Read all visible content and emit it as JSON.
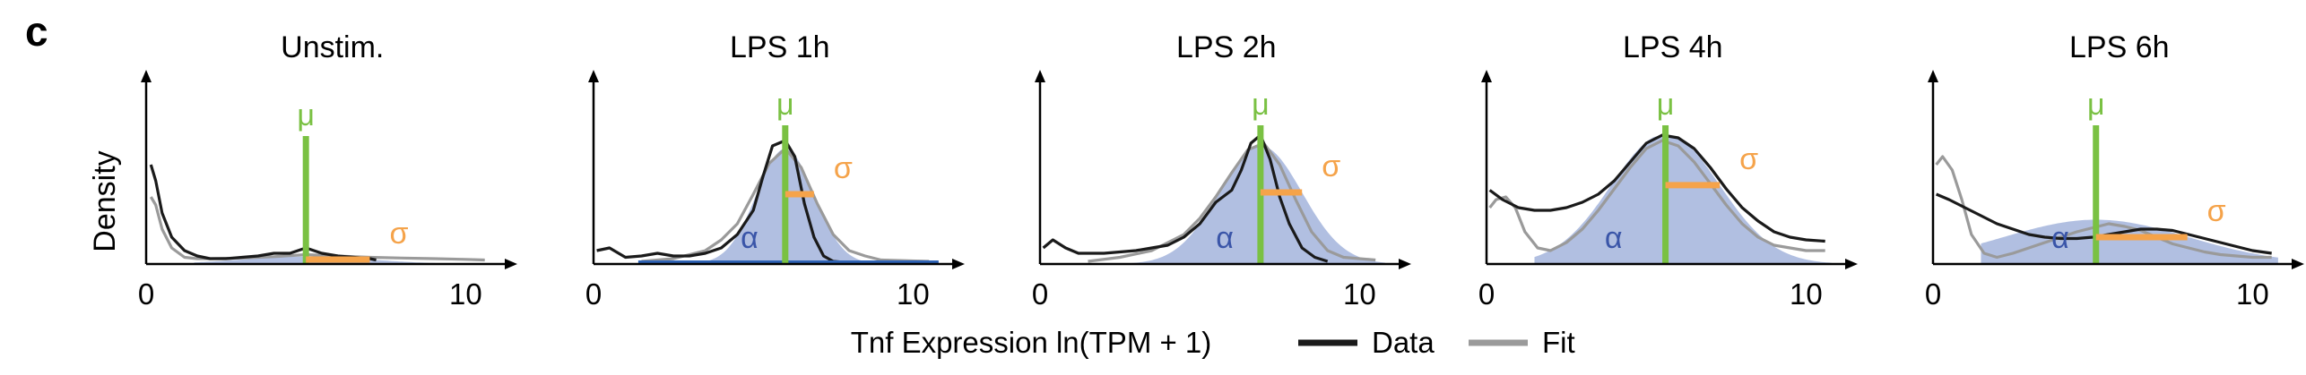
{
  "figure": {
    "panel_label": "c",
    "y_axis_label": "Density",
    "x_axis_label": "Tnf Expression ln(TPM + 1)",
    "legend": [
      {
        "label": "Data",
        "color": "#1a1a1a"
      },
      {
        "label": "Fit",
        "color": "#9a9a9a"
      }
    ],
    "symbols": {
      "mu": "μ",
      "sigma": "σ",
      "alpha": "α"
    },
    "colors": {
      "mu_line": "#7ac143",
      "sigma_line": "#f5a34a",
      "alpha_fill": "#a8b8de",
      "alpha_text": "#3a55a8",
      "data_line": "#1a1a1a",
      "fit_line": "#9a9a9a",
      "baseline_blue": "#2e62b5"
    }
  },
  "chart_data": [
    {
      "type": "area",
      "title": "Unstim.",
      "x_tick_labels": [
        "0",
        "10"
      ],
      "xlim": [
        0,
        11
      ],
      "ylim": [
        0,
        1
      ],
      "fit_params": {
        "mu": 5.0,
        "sigma": 2.0,
        "alpha": 0.04
      },
      "series": [
        {
          "name": "Data",
          "x": [
            0.15,
            0.3,
            0.5,
            0.8,
            1.2,
            1.6,
            2.0,
            2.5,
            3.0,
            3.5,
            4.0,
            4.5,
            5.0,
            5.5,
            6.0,
            6.5,
            7.0,
            7.2
          ],
          "y": [
            0.74,
            0.62,
            0.38,
            0.2,
            0.1,
            0.06,
            0.04,
            0.04,
            0.05,
            0.06,
            0.08,
            0.08,
            0.12,
            0.08,
            0.06,
            0.05,
            0.04,
            0.03
          ]
        },
        {
          "name": "Fit",
          "x": [
            0.15,
            0.3,
            0.5,
            0.8,
            1.2,
            1.6,
            2.0,
            3.0,
            4.0,
            5.0,
            6.0,
            7.0,
            8.0,
            9.0,
            10.0,
            10.6
          ],
          "y": [
            0.5,
            0.44,
            0.26,
            0.12,
            0.05,
            0.04,
            0.04,
            0.045,
            0.055,
            0.07,
            0.06,
            0.05,
            0.045,
            0.04,
            0.035,
            0.03
          ]
        }
      ]
    },
    {
      "type": "area",
      "title": "LPS 1h",
      "x_tick_labels": [
        "0",
        "10"
      ],
      "xlim": [
        0,
        11
      ],
      "ylim": [
        0,
        1
      ],
      "fit_params": {
        "mu": 6.0,
        "sigma": 0.9,
        "alpha": 0.78
      },
      "series": [
        {
          "name": "Data",
          "x": [
            0.1,
            0.5,
            1.0,
            1.5,
            2.0,
            2.5,
            3.0,
            3.5,
            4.0,
            4.5,
            5.0,
            5.3,
            5.6,
            6.0,
            6.3,
            6.6,
            6.9,
            7.2,
            7.5,
            8.0
          ],
          "y": [
            0.1,
            0.12,
            0.05,
            0.06,
            0.08,
            0.06,
            0.06,
            0.08,
            0.12,
            0.22,
            0.4,
            0.65,
            0.88,
            0.92,
            0.8,
            0.45,
            0.2,
            0.06,
            0.02,
            0.01
          ]
        },
        {
          "name": "Fit",
          "x": [
            1.5,
            2.5,
            3.5,
            4.0,
            4.5,
            5.0,
            5.5,
            6.0,
            6.5,
            7.0,
            7.5,
            8.0,
            8.5,
            9.0,
            10.5
          ],
          "y": [
            0.02,
            0.04,
            0.1,
            0.18,
            0.3,
            0.52,
            0.75,
            0.86,
            0.72,
            0.45,
            0.22,
            0.1,
            0.06,
            0.03,
            0.02
          ]
        }
      ]
    },
    {
      "type": "area",
      "title": "LPS 2h",
      "x_tick_labels": [
        "0",
        "10"
      ],
      "xlim": [
        0,
        11
      ],
      "ylim": [
        0,
        1
      ],
      "fit_params": {
        "mu": 6.9,
        "sigma": 1.3,
        "alpha": 0.8
      },
      "series": [
        {
          "name": "Data",
          "x": [
            0.1,
            0.4,
            0.8,
            1.2,
            1.6,
            2.0,
            2.5,
            3.0,
            3.5,
            4.0,
            4.5,
            5.0,
            5.5,
            6.0,
            6.3,
            6.6,
            6.9,
            7.2,
            7.5,
            7.8,
            8.2,
            8.6,
            9.0
          ],
          "y": [
            0.12,
            0.18,
            0.12,
            0.08,
            0.08,
            0.08,
            0.09,
            0.1,
            0.12,
            0.14,
            0.2,
            0.3,
            0.46,
            0.55,
            0.7,
            0.9,
            0.96,
            0.78,
            0.5,
            0.3,
            0.12,
            0.05,
            0.02
          ]
        },
        {
          "name": "Fit",
          "x": [
            1.5,
            2.5,
            3.5,
            4.5,
            5.0,
            5.5,
            6.0,
            6.5,
            7.0,
            7.5,
            8.0,
            8.5,
            9.0,
            9.5,
            10.5
          ],
          "y": [
            0.02,
            0.05,
            0.1,
            0.22,
            0.34,
            0.5,
            0.68,
            0.85,
            0.9,
            0.74,
            0.48,
            0.24,
            0.1,
            0.05,
            0.03
          ]
        }
      ]
    },
    {
      "type": "area",
      "title": "LPS 4h",
      "x_tick_labels": [
        "0",
        "10"
      ],
      "xlim": [
        0,
        11
      ],
      "ylim": [
        0,
        1
      ],
      "fit_params": {
        "mu": 5.6,
        "sigma": 1.7,
        "alpha": 0.88
      },
      "series": [
        {
          "name": "Data",
          "x": [
            0.1,
            0.5,
            1.0,
            1.5,
            2.0,
            2.5,
            3.0,
            3.5,
            4.0,
            4.5,
            5.0,
            5.5,
            6.0,
            6.5,
            7.0,
            7.5,
            8.0,
            8.5,
            9.0,
            9.5,
            10.0,
            10.6
          ],
          "y": [
            0.55,
            0.48,
            0.42,
            0.4,
            0.4,
            0.42,
            0.46,
            0.52,
            0.62,
            0.76,
            0.9,
            0.96,
            0.94,
            0.86,
            0.72,
            0.56,
            0.42,
            0.32,
            0.24,
            0.2,
            0.18,
            0.17
          ]
        },
        {
          "name": "Fit",
          "x": [
            0.1,
            0.3,
            0.6,
            0.9,
            1.2,
            1.6,
            2.0,
            2.5,
            3.0,
            3.5,
            4.0,
            4.5,
            5.0,
            5.5,
            6.0,
            6.5,
            7.0,
            7.5,
            8.0,
            8.5,
            9.0,
            9.5,
            10.0,
            10.6
          ],
          "y": [
            0.42,
            0.48,
            0.5,
            0.42,
            0.24,
            0.12,
            0.1,
            0.16,
            0.26,
            0.4,
            0.56,
            0.72,
            0.86,
            0.92,
            0.88,
            0.76,
            0.6,
            0.44,
            0.3,
            0.2,
            0.14,
            0.12,
            0.1,
            0.1
          ]
        }
      ]
    },
    {
      "type": "area",
      "title": "LPS 6h",
      "x_tick_labels": [
        "0",
        "10"
      ],
      "xlim": [
        0,
        11
      ],
      "ylim": [
        0,
        1
      ],
      "fit_params": {
        "mu": 5.1,
        "sigma": 2.9,
        "alpha": 0.3
      },
      "series": [
        {
          "name": "Data",
          "x": [
            0.1,
            0.5,
            1.0,
            1.5,
            2.0,
            2.5,
            3.0,
            3.5,
            4.0,
            4.5,
            5.0,
            5.5,
            6.0,
            6.5,
            7.0,
            7.5,
            8.0,
            8.5,
            9.0,
            9.5,
            10.0,
            10.6
          ],
          "y": [
            0.52,
            0.48,
            0.42,
            0.36,
            0.3,
            0.26,
            0.22,
            0.2,
            0.19,
            0.19,
            0.2,
            0.22,
            0.24,
            0.26,
            0.26,
            0.25,
            0.22,
            0.19,
            0.16,
            0.13,
            0.1,
            0.08
          ]
        },
        {
          "name": "Fit",
          "x": [
            0.1,
            0.3,
            0.6,
            0.9,
            1.2,
            1.6,
            2.0,
            2.5,
            3.0,
            3.5,
            4.0,
            4.5,
            5.0,
            5.5,
            6.0,
            6.5,
            7.0,
            7.5,
            8.0,
            8.5,
            9.0,
            9.5,
            10.0,
            10.6
          ],
          "y": [
            0.74,
            0.8,
            0.7,
            0.48,
            0.22,
            0.08,
            0.05,
            0.08,
            0.12,
            0.16,
            0.2,
            0.24,
            0.27,
            0.3,
            0.28,
            0.25,
            0.2,
            0.15,
            0.12,
            0.09,
            0.07,
            0.06,
            0.05,
            0.05
          ]
        }
      ]
    }
  ]
}
